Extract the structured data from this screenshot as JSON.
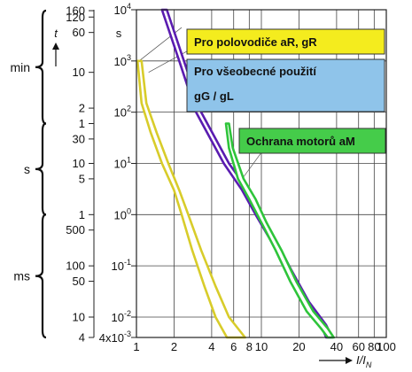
{
  "chart_data": {
    "type": "line",
    "xscale": "log",
    "yscale": "log",
    "xlim": [
      1,
      100
    ],
    "ylim": [
      0.004,
      10000
    ],
    "xlabel": "I/I",
    "xlabel_sub": "N",
    "ylabel": "t",
    "xticks": [
      {
        "v": 1,
        "t": "1"
      },
      {
        "v": 2,
        "t": "2"
      },
      {
        "v": 4,
        "t": "4"
      },
      {
        "v": 6,
        "t": "6"
      },
      {
        "v": 8,
        "t": "8"
      },
      {
        "v": 10,
        "t": "10"
      },
      {
        "v": 20,
        "t": "20"
      },
      {
        "v": 40,
        "t": "40"
      },
      {
        "v": 60,
        "t": "60"
      },
      {
        "v": 80,
        "t": "80"
      },
      {
        "v": 100,
        "t": "100"
      }
    ],
    "yticks_left": [
      {
        "v": 9600,
        "t": "160"
      },
      {
        "v": 7200,
        "t": "120"
      },
      {
        "v": 3600,
        "t": "60"
      },
      {
        "v": 600,
        "t": "10"
      },
      {
        "v": 120,
        "t": "2"
      },
      {
        "v": 60,
        "t": "1"
      },
      {
        "v": 30,
        "t": "30"
      },
      {
        "v": 10,
        "t": "10"
      },
      {
        "v": 5,
        "t": "5"
      },
      {
        "v": 1,
        "t": "1"
      },
      {
        "v": 0.5,
        "t": "500"
      },
      {
        "v": 0.1,
        "t": "100"
      },
      {
        "v": 0.05,
        "t": "50"
      },
      {
        "v": 0.01,
        "t": "10"
      },
      {
        "v": 0.004,
        "t": "4"
      }
    ],
    "yticks_right": [
      {
        "v": 10000,
        "base": "10",
        "exp": "4"
      },
      {
        "v": 1000,
        "base": "10",
        "exp": "3"
      },
      {
        "v": 100,
        "base": "10",
        "exp": "2"
      },
      {
        "v": 10,
        "base": "10",
        "exp": "1"
      },
      {
        "v": 1,
        "base": "10",
        "exp": "0"
      },
      {
        "v": 0.1,
        "base": "10",
        "exp": "-1"
      },
      {
        "v": 0.01,
        "base": "10",
        "exp": "-2"
      },
      {
        "v": 0.004,
        "base": "4x10",
        "exp": "-3"
      }
    ],
    "unit_s": "s",
    "groups": [
      {
        "label": "min",
        "from": 9600,
        "to": 60
      },
      {
        "label": "s",
        "from": 60,
        "to": 1
      },
      {
        "label": "ms",
        "from": 1,
        "to": 0.004
      }
    ],
    "series": [
      {
        "name": "Pro polovodiče aR, gR",
        "color": "#d8cc2a",
        "band": {
          "left": [
            [
              1.02,
              1000
            ],
            [
              1.1,
              150
            ],
            [
              1.3,
              40
            ],
            [
              1.6,
              10
            ],
            [
              2.0,
              3
            ],
            [
              2.3,
              1
            ],
            [
              2.8,
              0.2
            ],
            [
              3.5,
              0.04
            ],
            [
              4.3,
              0.01
            ],
            [
              5.3,
              0.004
            ]
          ],
          "right": [
            [
              1.1,
              1000
            ],
            [
              1.2,
              150
            ],
            [
              1.45,
              40
            ],
            [
              1.8,
              10
            ],
            [
              2.2,
              3
            ],
            [
              2.6,
              1
            ],
            [
              3.3,
              0.2
            ],
            [
              4.3,
              0.04
            ],
            [
              5.5,
              0.01
            ],
            [
              7.4,
              0.004
            ]
          ]
        }
      },
      {
        "name": "Pro všeobecné použití gG / gL",
        "color": "#5a1cb0",
        "band": {
          "left": [
            [
              1.6,
              10000
            ],
            [
              2.2,
              1000
            ],
            [
              3.0,
              100
            ],
            [
              5.0,
              10
            ],
            [
              7.0,
              3
            ],
            [
              9.0,
              1
            ],
            [
              12,
              0.3
            ],
            [
              16,
              0.08
            ],
            [
              22,
              0.02
            ],
            [
              30,
              0.007
            ],
            [
              33,
              0.004
            ]
          ],
          "right": [
            [
              1.75,
              10000
            ],
            [
              2.4,
              1000
            ],
            [
              3.3,
              100
            ],
            [
              5.5,
              10
            ],
            [
              7.8,
              3
            ],
            [
              9.8,
              1
            ],
            [
              13.2,
              0.3
            ],
            [
              17.5,
              0.08
            ],
            [
              24,
              0.02
            ],
            [
              33,
              0.007
            ],
            [
              37,
              0.004
            ]
          ]
        }
      },
      {
        "name": "Ochrana motorů aM",
        "color": "#2ec43a",
        "band": {
          "left": [
            [
              5.2,
              60
            ],
            [
              5.5,
              20
            ],
            [
              6.5,
              5
            ],
            [
              8.0,
              2
            ],
            [
              10,
              0.7
            ],
            [
              13,
              0.2
            ],
            [
              17,
              0.05
            ],
            [
              23,
              0.013
            ],
            [
              30,
              0.006
            ],
            [
              34,
              0.004
            ]
          ],
          "right": [
            [
              5.5,
              60
            ],
            [
              5.9,
              20
            ],
            [
              7.2,
              5
            ],
            [
              9.0,
              2
            ],
            [
              11,
              0.7
            ],
            [
              14.5,
              0.2
            ],
            [
              19,
              0.05
            ],
            [
              26,
              0.013
            ],
            [
              34,
              0.006
            ],
            [
              38,
              0.004
            ]
          ]
        }
      }
    ],
    "legend_boxes": [
      {
        "lines": [
          "Pro polovodiče aR, gR"
        ],
        "fill": "#f4ec1e"
      },
      {
        "lines": [
          "Pro všeobecné použití",
          "gG / gL"
        ],
        "fill": "#8fc4ea"
      },
      {
        "lines": [
          "Ochrana  motorů aM"
        ],
        "fill": "#45cc4a"
      }
    ]
  }
}
